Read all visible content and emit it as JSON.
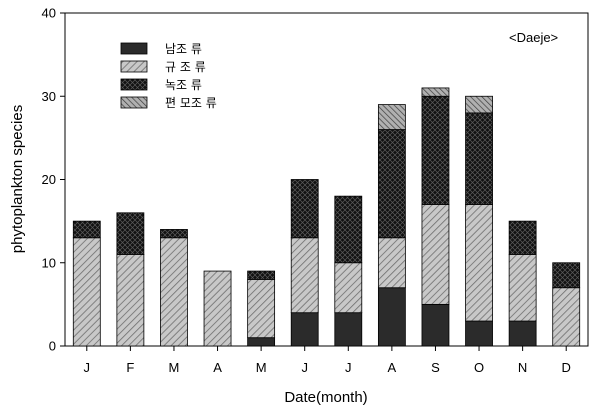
{
  "chart_data": {
    "type": "bar",
    "stacked": true,
    "annotation": "<Daeje>",
    "xlabel": "Date(month)",
    "ylabel": "phytoplankton species",
    "ylim": [
      0,
      40
    ],
    "yticks": [
      0,
      10,
      20,
      30,
      40
    ],
    "grid": false,
    "legend_position": "top-left",
    "categories": [
      "J",
      "F",
      "M",
      "A",
      "M",
      "J",
      "J",
      "A",
      "S",
      "O",
      "N",
      "D"
    ],
    "series": [
      {
        "name": "남조 류",
        "pattern": "solid-dark",
        "color": "#2b2b2b",
        "values": [
          0,
          0,
          0,
          0,
          1,
          4,
          4,
          7,
          5,
          3,
          3,
          0
        ]
      },
      {
        "name": "규 조 류",
        "pattern": "diagonal-light",
        "color": "#bdbdbd",
        "values": [
          13,
          11,
          13,
          9,
          7,
          9,
          6,
          6,
          12,
          14,
          8,
          7
        ]
      },
      {
        "name": "녹조 류",
        "pattern": "crosshatch-dark",
        "color": "#1a1a1a",
        "values": [
          2,
          5,
          1,
          0,
          1,
          7,
          8,
          13,
          13,
          11,
          4,
          3
        ]
      },
      {
        "name": "편 모조 류",
        "pattern": "diagonal-medium",
        "color": "#8f8f8f",
        "values": [
          0,
          0,
          0,
          0,
          0,
          0,
          0,
          3,
          1,
          2,
          0,
          0
        ]
      }
    ]
  }
}
